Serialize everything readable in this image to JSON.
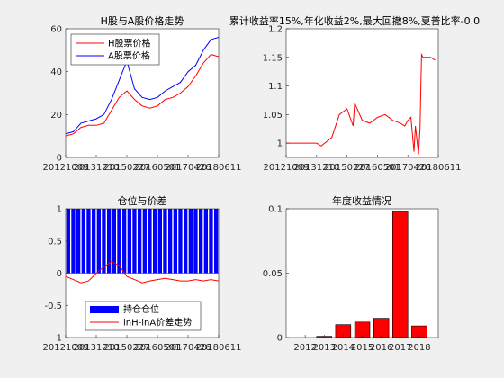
{
  "chart_data": [
    {
      "type": "line",
      "title": "H股与A股价格走势",
      "ylim": [
        0,
        60
      ],
      "yticks": [
        "0",
        "20",
        "40",
        "60"
      ],
      "xticks": [
        "20121009",
        "20131210",
        "20150227",
        "20160501",
        "20170426",
        "20180611"
      ],
      "legend": {
        "placement": "top-left",
        "entries": [
          "H股票价格",
          "A股票价格"
        ]
      },
      "series": [
        {
          "name": "H股票价格",
          "color": "#ff0000",
          "x": [
            0,
            0.05,
            0.1,
            0.15,
            0.2,
            0.25,
            0.3,
            0.35,
            0.4,
            0.45,
            0.5,
            0.55,
            0.6,
            0.65,
            0.7,
            0.75,
            0.8,
            0.85,
            0.9,
            0.95,
            1
          ],
          "y": [
            10,
            11,
            14,
            15,
            15,
            16,
            22,
            28,
            31,
            27,
            24,
            23,
            24,
            27,
            28,
            30,
            33,
            38,
            44,
            48,
            47
          ]
        },
        {
          "name": "A股票价格",
          "color": "#0000ff",
          "x": [
            0,
            0.05,
            0.1,
            0.15,
            0.2,
            0.25,
            0.3,
            0.35,
            0.4,
            0.45,
            0.5,
            0.55,
            0.6,
            0.65,
            0.7,
            0.75,
            0.8,
            0.85,
            0.9,
            0.95,
            1
          ],
          "y": [
            11,
            12,
            16,
            17,
            18,
            20,
            27,
            36,
            45,
            32,
            28,
            27,
            28,
            31,
            33,
            35,
            40,
            43,
            50,
            55,
            56
          ]
        }
      ]
    },
    {
      "type": "line",
      "title": "累计收益率15%,年化收益2%,最大回撤8%,夏普比率-0.0",
      "ylim": [
        0.975,
        1.2
      ],
      "yticks": [
        "1",
        "1.05",
        "1.1",
        "1.15",
        "1.2"
      ],
      "xticks": [
        "20121009",
        "20131210",
        "20150227",
        "20160501",
        "20170426",
        "20180611"
      ],
      "series": [
        {
          "name": "",
          "color": "#ff0000",
          "x": [
            0,
            0.1,
            0.2,
            0.23,
            0.3,
            0.35,
            0.4,
            0.44,
            0.45,
            0.5,
            0.55,
            0.6,
            0.65,
            0.7,
            0.75,
            0.78,
            0.8,
            0.82,
            0.84,
            0.85,
            0.87,
            0.88,
            0.89,
            0.9,
            0.95,
            0.98
          ],
          "y": [
            1.0,
            1.0,
            1.0,
            0.995,
            1.01,
            1.05,
            1.06,
            1.03,
            1.07,
            1.04,
            1.035,
            1.045,
            1.05,
            1.04,
            1.035,
            1.03,
            1.04,
            1.045,
            0.985,
            1.03,
            0.98,
            1.025,
            1.155,
            1.15,
            1.15,
            1.145
          ]
        }
      ]
    },
    {
      "type": "area",
      "title": "仓位与价差",
      "ylim": [
        -1,
        1
      ],
      "yticks": [
        "-1",
        "-0.5",
        "0",
        "0.5",
        "1"
      ],
      "xticks": [
        "20121009",
        "20131210",
        "20150227",
        "20160501",
        "20170426",
        "20180611"
      ],
      "legend": {
        "placement": "bottom-center",
        "entries": [
          "持仓仓位",
          "lnH-lnA价差走势"
        ]
      },
      "position_color": "#0000ff",
      "position_bars": 30,
      "series": [
        {
          "name": "lnH-lnA价差走势",
          "color": "#ff0000",
          "x": [
            0,
            0.05,
            0.1,
            0.15,
            0.2,
            0.25,
            0.3,
            0.35,
            0.4,
            0.45,
            0.5,
            0.55,
            0.6,
            0.65,
            0.7,
            0.75,
            0.8,
            0.85,
            0.9,
            0.95,
            1
          ],
          "y": [
            -0.05,
            -0.1,
            -0.15,
            -0.12,
            0.0,
            0.1,
            0.18,
            0.12,
            -0.05,
            -0.1,
            -0.15,
            -0.12,
            -0.1,
            -0.08,
            -0.1,
            -0.12,
            -0.12,
            -0.1,
            -0.12,
            -0.1,
            -0.12
          ]
        }
      ]
    },
    {
      "type": "bar",
      "title": "年度收益情况",
      "categories": [
        "2012",
        "2013",
        "2014",
        "2015",
        "2016",
        "2017",
        "2018"
      ],
      "values": [
        0.0,
        0.001,
        0.01,
        0.012,
        0.015,
        0.098,
        0.009
      ],
      "ylim": [
        0,
        0.1
      ],
      "yticks": [
        "0",
        "0.05",
        "0.1"
      ],
      "bar_color": "#ff0000"
    }
  ]
}
